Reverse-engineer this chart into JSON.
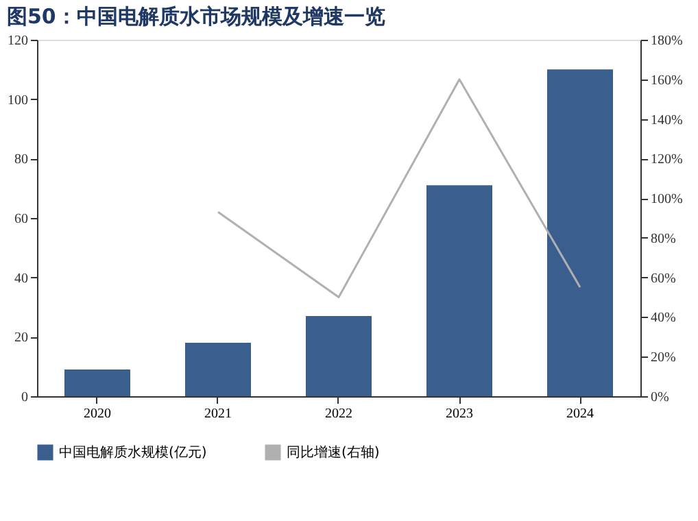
{
  "chart_data": {
    "type": "bar",
    "title": "图50：中国电解质水市场规模及增速一览",
    "categories": [
      "2020",
      "2021",
      "2022",
      "2023",
      "2024"
    ],
    "series": [
      {
        "name": "中国电解质水规模(亿元)",
        "color": "#3a5f8f",
        "values": [
          9,
          18,
          27,
          71,
          110
        ]
      },
      {
        "name": "同比增速(右轴)",
        "type": "line",
        "axis": "y2",
        "color": "#b0b0b0",
        "values": [
          null,
          93,
          50,
          160,
          55
        ]
      }
    ],
    "ylim": [
      0,
      120
    ],
    "yticks": [
      0,
      20,
      40,
      60,
      80,
      100,
      120
    ],
    "y2lim": [
      0,
      180
    ],
    "y2ticks": [
      {
        "value": 0,
        "label": "0%"
      },
      {
        "value": 20,
        "label": "20%"
      },
      {
        "value": 40,
        "label": "40%"
      },
      {
        "value": 60,
        "label": "60%"
      },
      {
        "value": 80,
        "label": "80%"
      },
      {
        "value": 100,
        "label": "100%"
      },
      {
        "value": 120,
        "label": "120%"
      },
      {
        "value": 140,
        "label": "140%"
      },
      {
        "value": 160,
        "label": "160%"
      },
      {
        "value": 180,
        "label": "180%"
      }
    ],
    "grid": false,
    "legend": "bottom",
    "marker": "none",
    "line_style": "solid"
  }
}
